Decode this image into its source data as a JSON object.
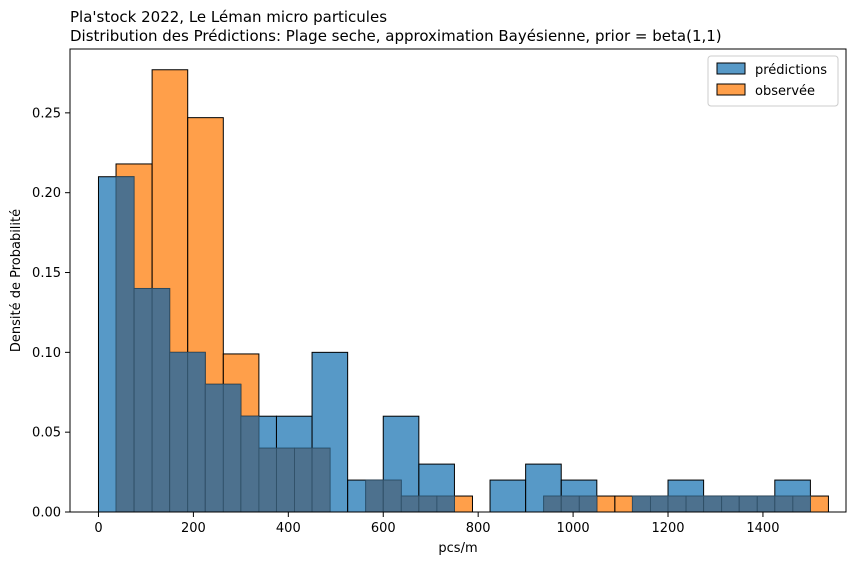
{
  "chart_data": {
    "type": "histogram",
    "title": "Pla'stock 2022, Le Léman micro particules",
    "subtitle": "Distribution des Prédictions: Plage seche,  approximation Bayésienne, prior = beta(1,1)",
    "xlabel": "pcs/m",
    "ylabel": "Densité de Probabilité",
    "xlim": [
      -60,
      1575
    ],
    "ylim": [
      0,
      0.29
    ],
    "x_ticks": [
      0,
      200,
      400,
      600,
      800,
      1000,
      1200,
      1400
    ],
    "y_ticks": [
      0.0,
      0.05,
      0.1,
      0.15,
      0.2,
      0.25
    ],
    "y_tick_labels": [
      "0.00",
      "0.05",
      "0.10",
      "0.15",
      "0.20",
      "0.25"
    ],
    "legend": {
      "position": "top-right",
      "entries": [
        "prédictions",
        "observée"
      ]
    },
    "colors": {
      "predictions": "#1f77b4",
      "observed": "#ff7f0e",
      "overlap": "#4b6f8c"
    },
    "series": [
      {
        "name": "observée",
        "bins": [
          {
            "x0": 37,
            "x1": 113,
            "y": 0.218
          },
          {
            "x0": 113,
            "x1": 188,
            "y": 0.277
          },
          {
            "x0": 188,
            "x1": 263,
            "y": 0.247
          },
          {
            "x0": 263,
            "x1": 338,
            "y": 0.099
          },
          {
            "x0": 338,
            "x1": 413,
            "y": 0.04
          },
          {
            "x0": 413,
            "x1": 488,
            "y": 0.04
          },
          {
            "x0": 563,
            "x1": 638,
            "y": 0.02
          },
          {
            "x0": 638,
            "x1": 713,
            "y": 0.01
          },
          {
            "x0": 713,
            "x1": 788,
            "y": 0.01
          },
          {
            "x0": 938,
            "x1": 1013,
            "y": 0.01
          },
          {
            "x0": 1013,
            "x1": 1088,
            "y": 0.01
          },
          {
            "x0": 1088,
            "x1": 1163,
            "y": 0.01
          },
          {
            "x0": 1163,
            "x1": 1238,
            "y": 0.01
          },
          {
            "x0": 1238,
            "x1": 1313,
            "y": 0.01
          },
          {
            "x0": 1313,
            "x1": 1388,
            "y": 0.01
          },
          {
            "x0": 1388,
            "x1": 1463,
            "y": 0.01
          },
          {
            "x0": 1463,
            "x1": 1538,
            "y": 0.01
          }
        ]
      },
      {
        "name": "prédictions",
        "bins": [
          {
            "x0": 0,
            "x1": 75,
            "y": 0.21
          },
          {
            "x0": 75,
            "x1": 150,
            "y": 0.14
          },
          {
            "x0": 150,
            "x1": 225,
            "y": 0.1
          },
          {
            "x0": 225,
            "x1": 300,
            "y": 0.08
          },
          {
            "x0": 300,
            "x1": 375,
            "y": 0.06
          },
          {
            "x0": 375,
            "x1": 450,
            "y": 0.06
          },
          {
            "x0": 450,
            "x1": 525,
            "y": 0.1
          },
          {
            "x0": 525,
            "x1": 600,
            "y": 0.02
          },
          {
            "x0": 600,
            "x1": 675,
            "y": 0.06
          },
          {
            "x0": 675,
            "x1": 750,
            "y": 0.03
          },
          {
            "x0": 825,
            "x1": 900,
            "y": 0.02
          },
          {
            "x0": 900,
            "x1": 975,
            "y": 0.03
          },
          {
            "x0": 975,
            "x1": 1050,
            "y": 0.02
          },
          {
            "x0": 1125,
            "x1": 1200,
            "y": 0.01
          },
          {
            "x0": 1200,
            "x1": 1275,
            "y": 0.02
          },
          {
            "x0": 1275,
            "x1": 1350,
            "y": 0.01
          },
          {
            "x0": 1350,
            "x1": 1425,
            "y": 0.01
          },
          {
            "x0": 1425,
            "x1": 1500,
            "y": 0.02
          }
        ]
      }
    ]
  }
}
